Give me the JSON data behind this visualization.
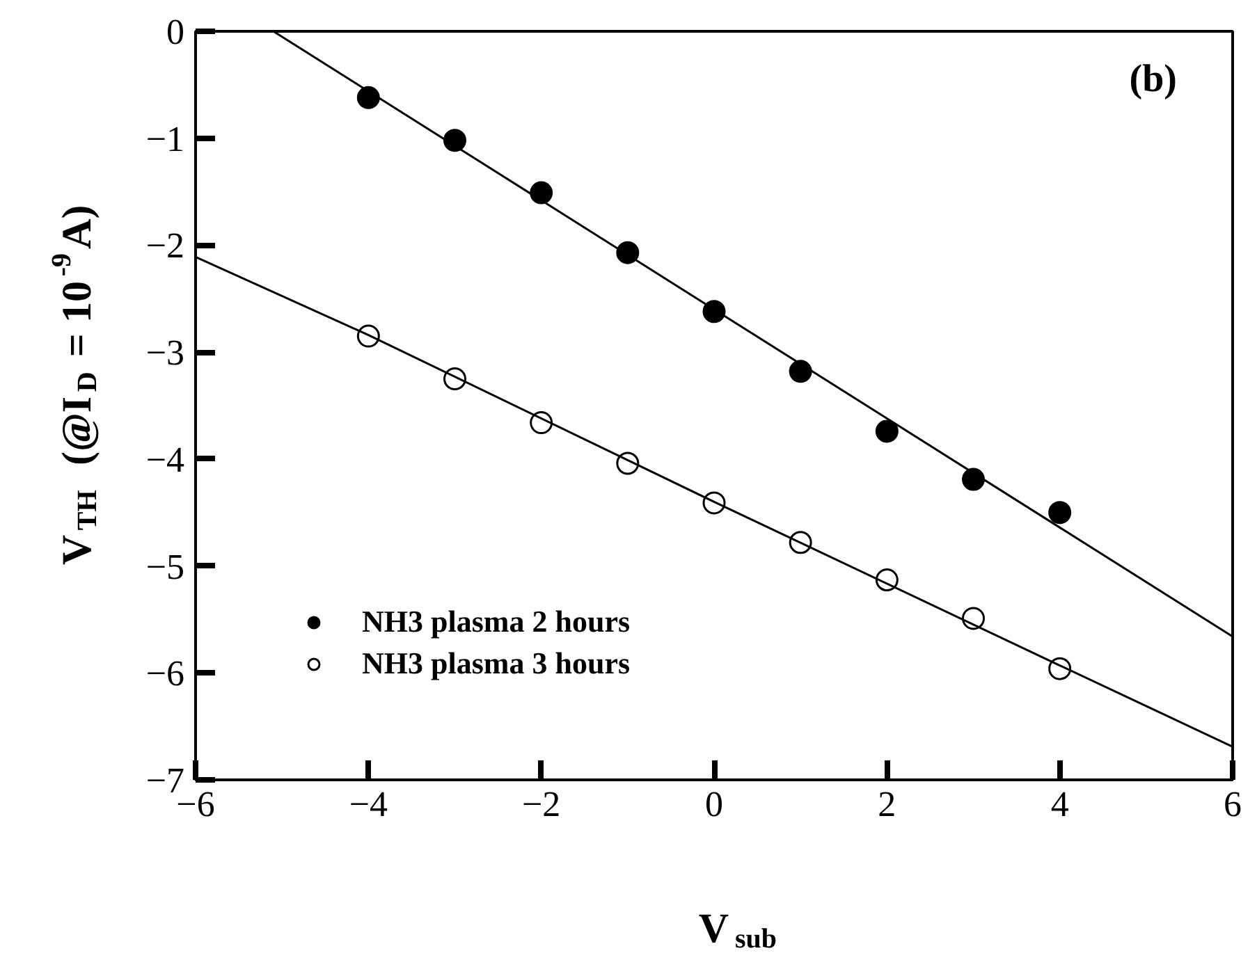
{
  "chart_data": {
    "type": "scatter",
    "xlabel": "V$_{sub}$",
    "ylabel": "V$_{TH}$  (@I$_{D}$ = 10$^{-9}$A)",
    "annotations": [
      "(b)"
    ],
    "x": [
      -4,
      -3,
      -2,
      -1,
      0,
      1,
      2,
      3,
      4
    ],
    "xlim": [
      -6,
      6
    ],
    "xticks": [
      -6,
      -4,
      -2,
      0,
      2,
      4,
      6
    ],
    "ylim": [
      -7,
      0
    ],
    "yticks": [
      -7,
      -6,
      -5,
      -4,
      -3,
      -2,
      -1,
      0
    ],
    "grid": false,
    "legend": "bottom left",
    "marker": "circle",
    "series": [
      {
        "name": "NH3 plasma 2 hours",
        "color": "#000000",
        "values": [
          -0.62,
          -1.02,
          -1.51,
          -2.07,
          -2.62,
          -3.18,
          -3.74,
          -4.19,
          -4.5
        ]
      },
      {
        "name": "NH3 plasma 3 hours",
        "color": "#ffffff",
        "values": [
          -2.85,
          -3.25,
          -3.66,
          -4.04,
          -4.41,
          -4.78,
          -5.13,
          -5.49,
          -5.96
        ]
      },
      {
        "type": "line",
        "marker": "none",
        "color": "#000000",
        "x": [
          -5.1,
          6
        ],
        "values": [
          0,
          -5.66
        ]
      },
      {
        "type": "line",
        "marker": "none",
        "color": "#000000",
        "x": [
          -6,
          -4,
          0,
          4,
          6
        ],
        "values": [
          -2.11,
          -2.84,
          -4.4,
          -5.93,
          -6.69
        ]
      }
    ]
  }
}
